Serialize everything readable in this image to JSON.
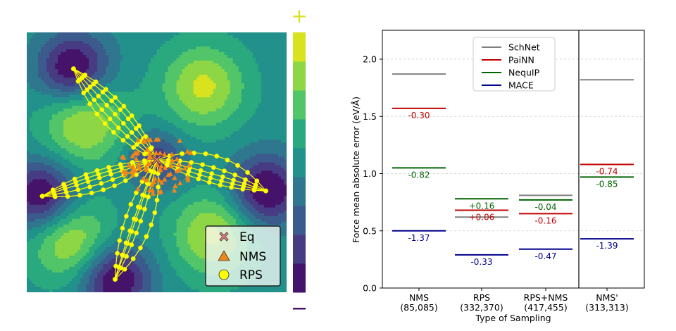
{
  "chart_data": [
    {
      "type": "contour",
      "title": "",
      "description": "Potential energy surface (viridis contour) with sampled configurations",
      "colorbar": {
        "top_label": "+",
        "bottom_label": "−",
        "levels": [
          "#440154",
          "#472f7d",
          "#3b528b",
          "#2c728e",
          "#21918c",
          "#28ae80",
          "#5ec962",
          "#addc30",
          "#fde725"
        ],
        "display_levels": [
          "#46136a",
          "#473c83",
          "#3b5b8c",
          "#2f778e",
          "#23918b",
          "#2aa97f",
          "#52c569",
          "#8dd645",
          "#d9e21f"
        ]
      },
      "legend": {
        "placement": "bottom-right",
        "entries": [
          {
            "label": "Eq",
            "marker": "x-cross",
            "color": "#f08080"
          },
          {
            "label": "NMS",
            "marker": "triangle",
            "color": "#f28518"
          },
          {
            "label": "RPS",
            "marker": "circle",
            "color": "#ffff00"
          }
        ]
      },
      "equilibrium": [
        0.5,
        0.49
      ],
      "minima": [
        [
          0.18,
          0.14
        ],
        [
          0.06,
          0.63
        ],
        [
          0.92,
          0.61
        ],
        [
          0.34,
          0.95
        ]
      ],
      "maxima": [
        [
          0.68,
          0.21
        ],
        [
          0.22,
          0.35
        ],
        [
          0.72,
          0.78
        ],
        [
          0.17,
          0.8
        ]
      ]
    },
    {
      "type": "bar-level",
      "title": "",
      "xlabel": "Type of Sampling",
      "ylabel": "Force mean absolute error (eV/Å)",
      "ylim": [
        0,
        2.2
      ],
      "yticks": [
        "0.0",
        "0.5",
        "1.0",
        "1.5",
        "2.0"
      ],
      "ytick_values": [
        0,
        0.5,
        1.0,
        1.5,
        2.0
      ],
      "grid": "horizontal-dashed",
      "categories": [
        {
          "name": "NMS",
          "count": "(85,085)"
        },
        {
          "name": "RPS",
          "count": "(332,370)"
        },
        {
          "name": "RPS+NMS",
          "count": "(417,455)"
        },
        {
          "name": "NMS'",
          "count": "(313,313)"
        }
      ],
      "legend": {
        "placement": "top-center"
      },
      "series": [
        {
          "name": "SchNet",
          "color": "#808080",
          "values": [
            1.87,
            0.62,
            0.81,
            1.82
          ],
          "labels": [
            "",
            "",
            "",
            ""
          ]
        },
        {
          "name": "PaiNN",
          "color": "#c00000",
          "values": [
            1.57,
            0.68,
            0.65,
            1.08
          ],
          "labels": [
            "-0.30",
            "+0.06",
            "-0.16",
            "-0.74"
          ]
        },
        {
          "name": "NequIP",
          "color": "#006400",
          "values": [
            1.05,
            0.78,
            0.77,
            0.97
          ],
          "labels": [
            "-0.82",
            "+0.16",
            "-0.04",
            "-0.85"
          ]
        },
        {
          "name": "MACE",
          "color": "#00008b",
          "values": [
            0.5,
            0.29,
            0.34,
            0.43
          ],
          "labels": [
            "-1.37",
            "-0.33",
            "-0.47",
            "-1.39"
          ]
        }
      ],
      "separator_after_category": 2
    }
  ]
}
